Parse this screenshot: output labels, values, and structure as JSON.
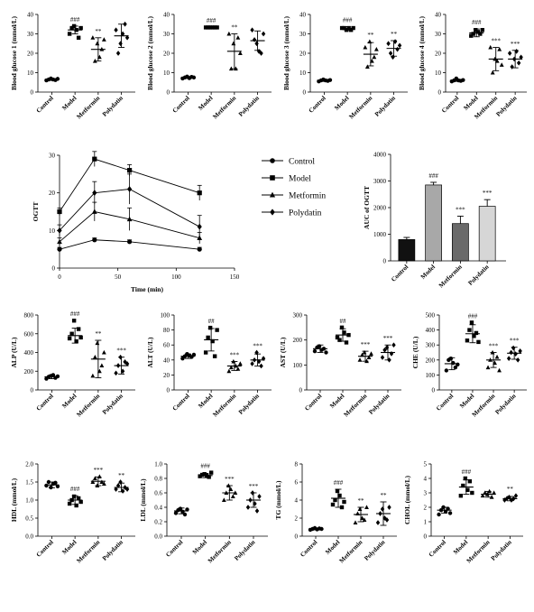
{
  "chart_data": [
    {
      "id": "bg1",
      "type": "scatter",
      "ylabel": "Blood glucose 1 (mmol/L)",
      "ylim": [
        0,
        40
      ],
      "yticks": [
        0,
        10,
        20,
        30,
        40
      ],
      "categories": [
        "Control",
        "Model",
        "Metformin",
        "Polydatin"
      ],
      "means": [
        6.5,
        32,
        22,
        29
      ],
      "errors": [
        0.5,
        2,
        6,
        6
      ],
      "sig": [
        "",
        "###",
        "**",
        ""
      ],
      "points": [
        [
          6,
          6.5,
          7,
          6.5,
          6.2,
          6.8
        ],
        [
          30,
          33,
          34,
          32,
          28,
          33
        ],
        [
          28,
          16,
          25,
          18,
          22,
          27
        ],
        [
          32,
          20,
          25,
          30,
          35,
          28
        ]
      ]
    },
    {
      "id": "bg2",
      "type": "scatter",
      "ylabel": "Blood glucose 2 (mmol/L)",
      "ylim": [
        0,
        40
      ],
      "yticks": [
        0,
        10,
        20,
        30,
        40
      ],
      "categories": [
        "Control",
        "Model",
        "Metformin",
        "Polydatin"
      ],
      "means": [
        7.5,
        33.3,
        21,
        26.5
      ],
      "errors": [
        0.5,
        0.3,
        9,
        5
      ],
      "sig": [
        "",
        "###",
        "**",
        ""
      ],
      "points": [
        [
          7,
          7.5,
          8,
          7.2,
          7.8,
          7.5
        ],
        [
          33.3,
          33.3,
          33.3,
          33.3,
          33.3,
          33.3
        ],
        [
          30,
          12,
          25,
          12,
          28,
          20
        ],
        [
          32,
          27,
          25,
          21,
          20,
          30
        ]
      ]
    },
    {
      "id": "bg3",
      "type": "scatter",
      "ylabel": "Blood glucose 3 (mmol/L)",
      "ylim": [
        0,
        40
      ],
      "yticks": [
        0,
        10,
        20,
        30,
        40
      ],
      "categories": [
        "Control",
        "Model",
        "Metformin",
        "Polydatin"
      ],
      "means": [
        6,
        32.7,
        19.5,
        22.5
      ],
      "errors": [
        0.5,
        1,
        6,
        4
      ],
      "sig": [
        "",
        "###",
        "**",
        "**"
      ],
      "points": [
        [
          5.5,
          6,
          6.5,
          6,
          5.8,
          6.2
        ],
        [
          33,
          33,
          32,
          33,
          32,
          33
        ],
        [
          23,
          13,
          26,
          16,
          18,
          22
        ],
        [
          25,
          20,
          18,
          26,
          22,
          24
        ]
      ]
    },
    {
      "id": "bg4",
      "type": "scatter",
      "ylabel": "Blood glucose 4 (mmol/L)",
      "ylim": [
        0,
        40
      ],
      "yticks": [
        0,
        10,
        20,
        30,
        40
      ],
      "categories": [
        "Control",
        "Model",
        "Metformin",
        "Polydatin"
      ],
      "means": [
        6,
        30.5,
        17,
        17
      ],
      "errors": [
        0.5,
        2,
        6,
        4.5
      ],
      "sig": [
        "",
        "###",
        "***",
        "***"
      ],
      "points": [
        [
          5.5,
          6,
          7,
          6,
          5.8,
          6.2
        ],
        [
          29,
          30,
          32,
          31,
          30,
          32
        ],
        [
          23,
          10,
          17,
          16,
          22,
          14
        ],
        [
          20,
          13,
          17,
          21,
          15,
          18
        ]
      ]
    },
    {
      "id": "ogtt",
      "type": "line",
      "ylabel": "OGTT",
      "xlabel": "Time (min)",
      "xlim": [
        0,
        150
      ],
      "xticks": [
        0,
        50,
        100,
        150
      ],
      "ylim": [
        0,
        30
      ],
      "yticks": [
        0,
        10,
        20,
        30
      ],
      "x": [
        0,
        30,
        60,
        120
      ],
      "series": [
        {
          "name": "Control",
          "marker": "circle",
          "values": [
            5,
            7.5,
            7,
            5
          ],
          "errors": [
            0.5,
            0.5,
            0.5,
            0.5
          ]
        },
        {
          "name": "Model",
          "marker": "square",
          "values": [
            15,
            29,
            26,
            20
          ],
          "errors": [
            1,
            2,
            1.5,
            2
          ]
        },
        {
          "name": "Metformin",
          "marker": "triangle",
          "values": [
            7,
            15,
            13,
            8
          ],
          "errors": [
            1,
            2.5,
            3,
            1.5
          ]
        },
        {
          "name": "Polydatin",
          "marker": "diamond",
          "values": [
            10,
            20,
            21,
            11
          ],
          "errors": [
            1.5,
            3,
            4,
            3
          ]
        }
      ]
    },
    {
      "id": "auc",
      "type": "bar",
      "ylabel": "AUC of OGTT",
      "ylim": [
        0,
        4000
      ],
      "yticks": [
        0,
        1000,
        2000,
        3000,
        4000
      ],
      "categories": [
        "Control",
        "Model",
        "Metformin",
        "Polydatin"
      ],
      "values": [
        800,
        2850,
        1400,
        2050
      ],
      "errors": [
        80,
        100,
        280,
        250
      ],
      "sig": [
        "",
        "###",
        "***",
        "***"
      ],
      "colors": [
        "#111111",
        "#a8a8a8",
        "#6a6a6a",
        "#d6d6d6"
      ]
    },
    {
      "id": "alp",
      "type": "scatter",
      "ylabel": "ALP (U/L)",
      "ylim": [
        0,
        800
      ],
      "yticks": [
        0,
        200,
        400,
        600,
        800
      ],
      "categories": [
        "Control",
        "Model",
        "Metformin",
        "Polydatin"
      ],
      "means": [
        140,
        580,
        330,
        260
      ],
      "errors": [
        20,
        80,
        200,
        90
      ],
      "sig": [
        "",
        "###",
        "**",
        "***"
      ],
      "points": [
        [
          120,
          140,
          150,
          160,
          130,
          145
        ],
        [
          550,
          600,
          740,
          520,
          650,
          560
        ],
        [
          150,
          350,
          500,
          200,
          260,
          400
        ],
        [
          180,
          260,
          350,
          200,
          300,
          280
        ]
      ]
    },
    {
      "id": "alt",
      "type": "scatter",
      "ylabel": "ALT (U/L)",
      "ylim": [
        0,
        100
      ],
      "yticks": [
        0,
        20,
        40,
        60,
        80,
        100
      ],
      "categories": [
        "Control",
        "Model",
        "Metformin",
        "Polydatin"
      ],
      "means": [
        45,
        67,
        32,
        40
      ],
      "errors": [
        3,
        15,
        6,
        8
      ],
      "sig": [
        "",
        "##",
        "***",
        "***"
      ],
      "points": [
        [
          42,
          45,
          48,
          46,
          44,
          47
        ],
        [
          50,
          70,
          83,
          65,
          45,
          80
        ],
        [
          25,
          30,
          38,
          32,
          28,
          35
        ],
        [
          35,
          40,
          50,
          38,
          32,
          42
        ]
      ]
    },
    {
      "id": "ast",
      "type": "scatter",
      "ylabel": "AST (U/L)",
      "ylim": [
        0,
        300
      ],
      "yticks": [
        0,
        100,
        200,
        300
      ],
      "categories": [
        "Control",
        "Model",
        "Metformin",
        "Polydatin"
      ],
      "means": [
        165,
        220,
        135,
        150
      ],
      "errors": [
        15,
        25,
        20,
        30
      ],
      "sig": [
        "",
        "##",
        "***",
        "***"
      ],
      "points": [
        [
          155,
          170,
          175,
          160,
          165,
          150
        ],
        [
          210,
          200,
          250,
          230,
          190,
          220
        ],
        [
          120,
          140,
          150,
          115,
          130,
          145
        ],
        [
          130,
          160,
          170,
          120,
          145,
          180
        ]
      ]
    },
    {
      "id": "che",
      "type": "scatter",
      "ylabel": "CHE (U/L)",
      "ylim": [
        0,
        500
      ],
      "yticks": [
        0,
        100,
        200,
        300,
        400,
        500
      ],
      "categories": [
        "Control",
        "Model",
        "Metformin",
        "Polydatin"
      ],
      "means": [
        175,
        375,
        200,
        245
      ],
      "errors": [
        40,
        60,
        50,
        40
      ],
      "sig": [
        "",
        "###",
        "***",
        "***"
      ],
      "points": [
        [
          130,
          200,
          210,
          180,
          150,
          170
        ],
        [
          330,
          400,
          450,
          360,
          380,
          320
        ],
        [
          150,
          200,
          250,
          180,
          220,
          130
        ],
        [
          210,
          250,
          280,
          240,
          200,
          260
        ]
      ]
    },
    {
      "id": "hdl",
      "type": "scatter",
      "ylabel": "HDL (mmol/L)",
      "ylim": [
        0.0,
        2.0
      ],
      "yticks": [
        "0.0",
        "0.5",
        "1.0",
        "1.5",
        "2.0"
      ],
      "categories": [
        "Control",
        "Model",
        "Metformin",
        "Polydatin"
      ],
      "means": [
        1.42,
        1.0,
        1.52,
        1.35
      ],
      "errors": [
        0.08,
        0.12,
        0.12,
        0.12
      ],
      "sig": [
        "",
        "###",
        "***",
        "**"
      ],
      "points": [
        [
          1.4,
          1.5,
          1.35,
          1.45,
          1.48,
          1.38
        ],
        [
          0.9,
          1.0,
          1.1,
          0.85,
          1.05,
          0.95
        ],
        [
          1.5,
          1.6,
          1.4,
          1.65,
          1.5,
          1.45
        ],
        [
          1.3,
          1.4,
          1.5,
          1.25,
          1.35,
          1.3
        ]
      ]
    },
    {
      "id": "ldl",
      "type": "scatter",
      "ylabel": "LDL (mmol/L)",
      "ylim": [
        0.0,
        1.0
      ],
      "yticks": [
        "0.0",
        "0.2",
        "0.4",
        "0.6",
        "0.8",
        "1.0"
      ],
      "categories": [
        "Control",
        "Model",
        "Metformin",
        "Polydatin"
      ],
      "means": [
        0.35,
        0.84,
        0.6,
        0.5
      ],
      "errors": [
        0.04,
        0.03,
        0.1,
        0.1
      ],
      "sig": [
        "",
        "###",
        "***",
        "***"
      ],
      "points": [
        [
          0.32,
          0.36,
          0.38,
          0.34,
          0.3,
          0.37
        ],
        [
          0.83,
          0.85,
          0.86,
          0.84,
          0.82,
          0.88
        ],
        [
          0.5,
          0.6,
          0.7,
          0.65,
          0.55,
          0.6
        ],
        [
          0.4,
          0.5,
          0.6,
          0.45,
          0.35,
          0.55
        ]
      ]
    },
    {
      "id": "tg",
      "type": "scatter",
      "ylabel": "TG (mmol/L)",
      "ylim": [
        0,
        8
      ],
      "yticks": [
        0,
        2,
        4,
        6,
        8
      ],
      "categories": [
        "Control",
        "Model",
        "Metformin",
        "Polydatin"
      ],
      "means": [
        0.8,
        4.2,
        2.4,
        2.5
      ],
      "errors": [
        0.1,
        1,
        0.8,
        1.3
      ],
      "sig": [
        "",
        "###",
        "**",
        "**"
      ],
      "points": [
        [
          0.7,
          0.8,
          0.9,
          0.75,
          0.85,
          0.8
        ],
        [
          3.5,
          4,
          5,
          4.5,
          3.2,
          3.8
        ],
        [
          1.5,
          2.5,
          3,
          2,
          1.8,
          3.2
        ],
        [
          1.5,
          2.5,
          3,
          2,
          1.8,
          3.2
        ]
      ]
    },
    {
      "id": "chol",
      "type": "scatter",
      "ylabel": "CHOL (mmol/L)",
      "ylim": [
        0,
        5
      ],
      "yticks": [
        0,
        1,
        2,
        3,
        4,
        5
      ],
      "categories": [
        "Control",
        "Model",
        "Metformin",
        "Polydatin"
      ],
      "means": [
        1.8,
        3.4,
        2.9,
        2.6
      ],
      "errors": [
        0.2,
        0.5,
        0.2,
        0.15
      ],
      "sig": [
        "",
        "###",
        "",
        "**"
      ],
      "points": [
        [
          1.5,
          1.8,
          2,
          1.7,
          1.9,
          1.6
        ],
        [
          2.8,
          3.5,
          4,
          3.2,
          3.8,
          3
        ],
        [
          2.8,
          3,
          2.9,
          3.1,
          2.7,
          3
        ],
        [
          2.5,
          2.6,
          2.7,
          2.5,
          2.6,
          2.8
        ]
      ]
    }
  ]
}
